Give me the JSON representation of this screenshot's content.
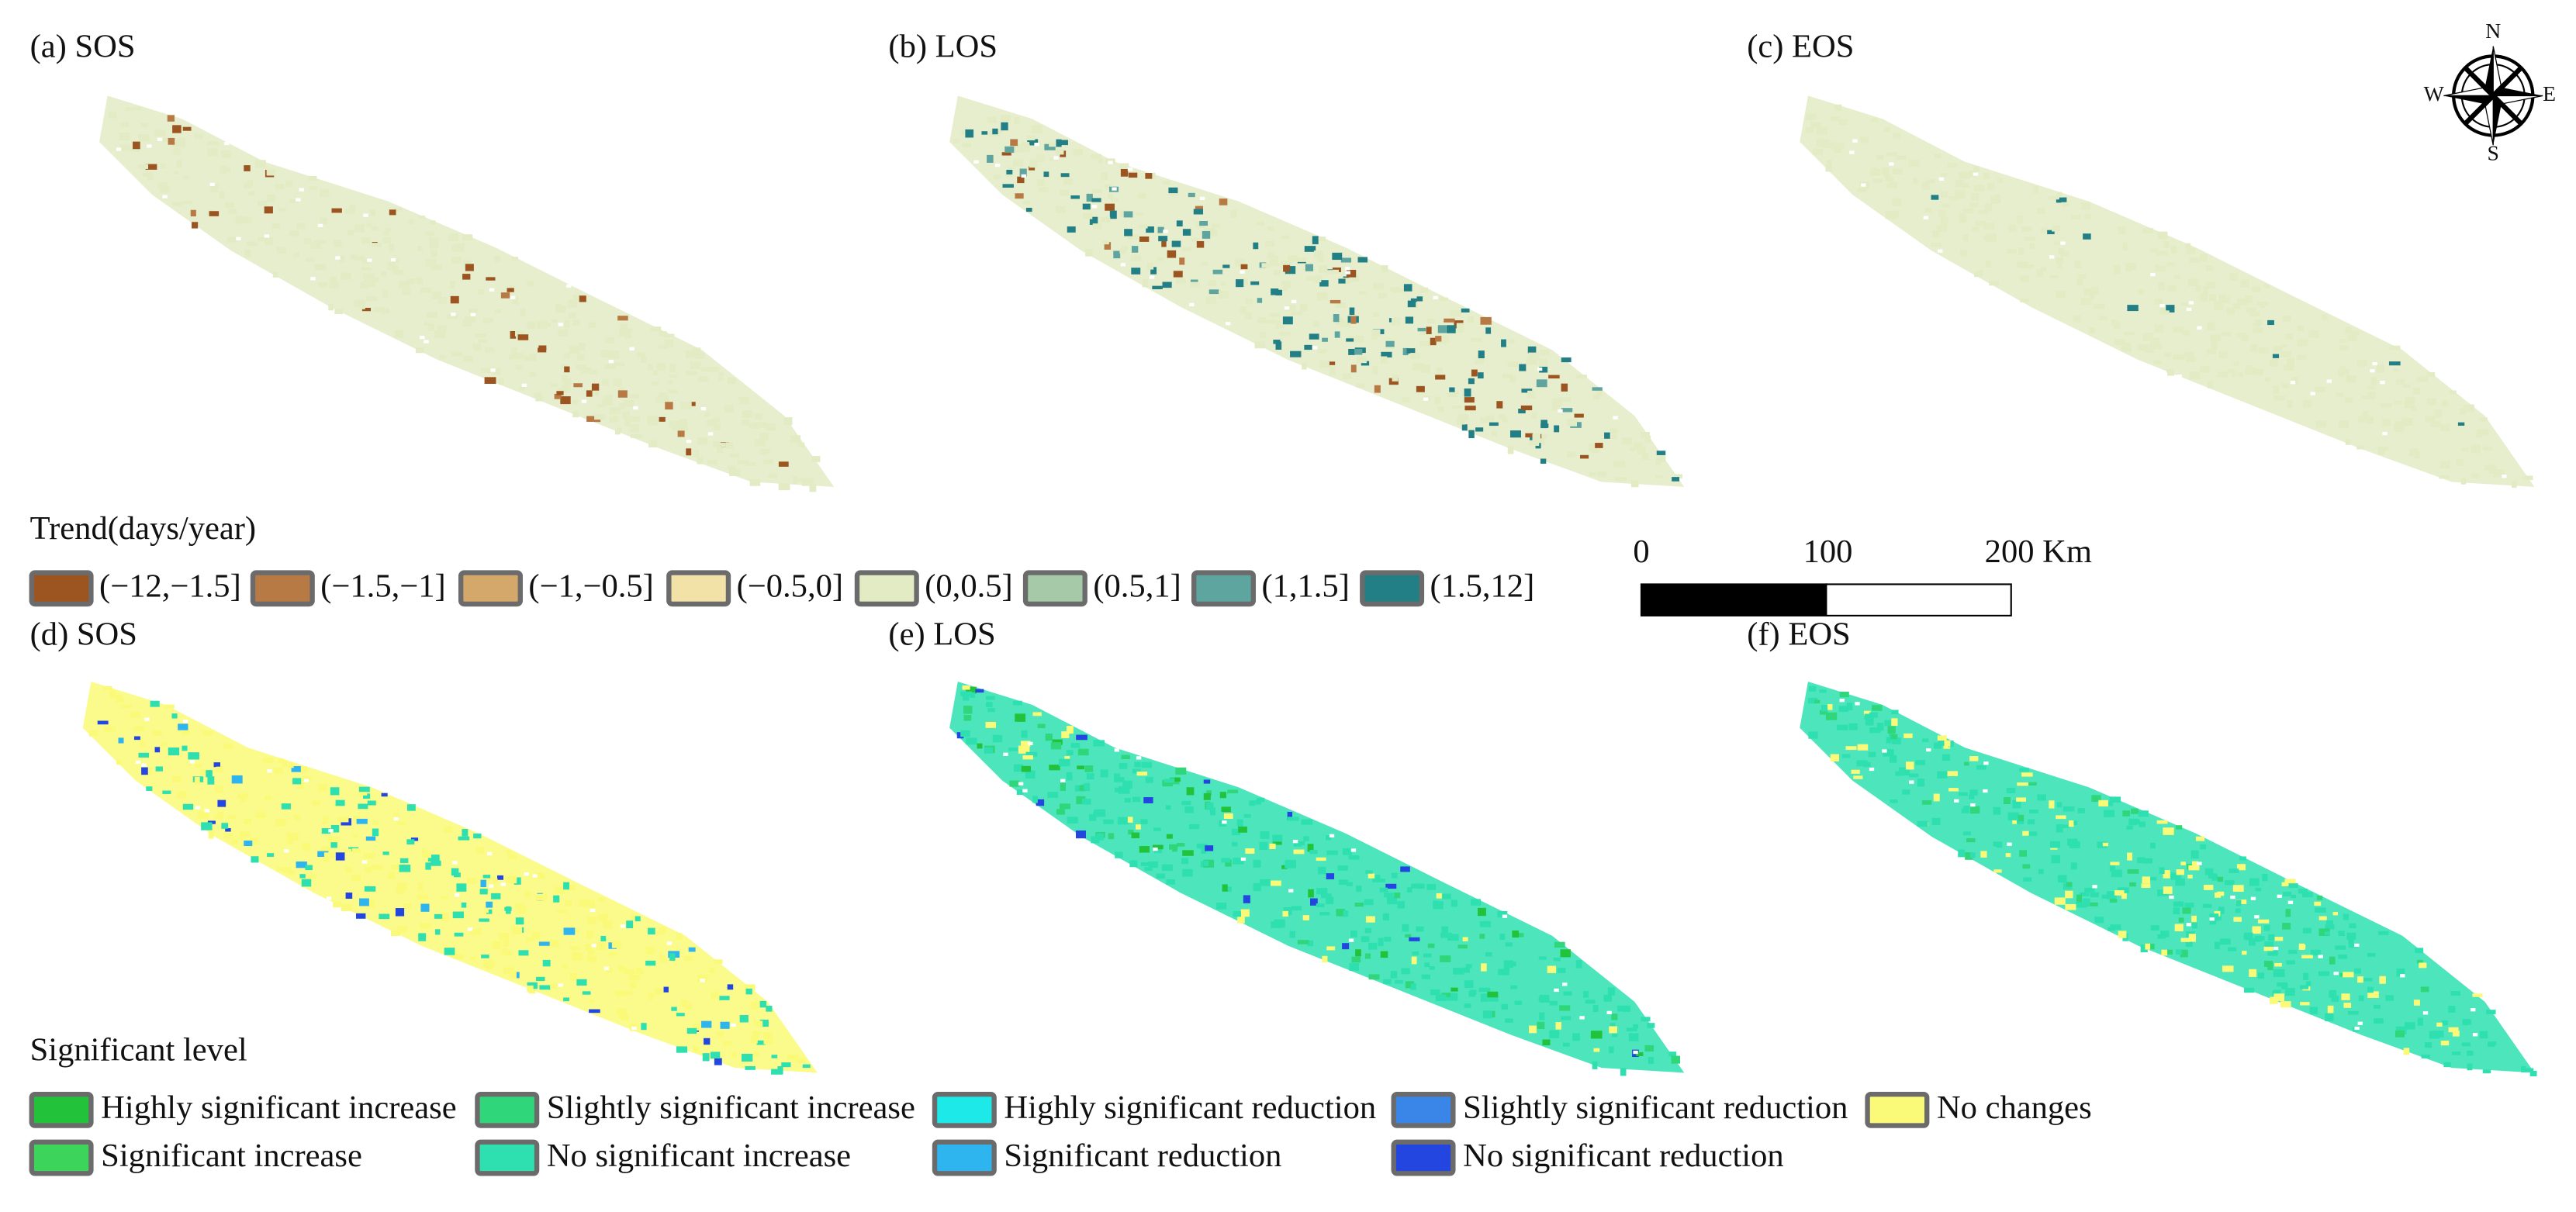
{
  "panels": [
    {
      "label": "(a) SOS"
    },
    {
      "label": "(b) LOS"
    },
    {
      "label": "(c) EOS"
    },
    {
      "label": "(d) SOS"
    },
    {
      "label": "(e) LOS"
    },
    {
      "label": "(f) EOS"
    }
  ],
  "trend_legend": {
    "title": "Trend(days/year)",
    "items": [
      {
        "label": "(−12,−1.5]",
        "color": "#9c5520"
      },
      {
        "label": "(−1.5,−1]",
        "color": "#b87a45"
      },
      {
        "label": "(−1,−0.5]",
        "color": "#d4a86a"
      },
      {
        "label": "(−0.5,0]",
        "color": "#f2e2a8"
      },
      {
        "label": "(0,0.5]",
        "color": "#e2ebc4"
      },
      {
        "label": "(0.5,1]",
        "color": "#a6c9a8"
      },
      {
        "label": "(1,1.5]",
        "color": "#5ea49f"
      },
      {
        "label": "(1.5,12]",
        "color": "#237f86"
      }
    ]
  },
  "scale_bar": {
    "labels": [
      "0",
      "100",
      "200 Km"
    ]
  },
  "compass": {
    "n": "N",
    "s": "S",
    "e": "E",
    "w": "W"
  },
  "significance_legend": {
    "title": "Significant level",
    "items": [
      {
        "label": "Highly significant increase",
        "color": "#22c33a"
      },
      {
        "label": "Slightly significant increase",
        "color": "#2fd67a"
      },
      {
        "label": "Highly significant reduction",
        "color": "#1de9e9"
      },
      {
        "label": "Slightly significant reduction",
        "color": "#3a86e8"
      },
      {
        "label": "No changes",
        "color": "#fafa78"
      },
      {
        "label": "Significant increase",
        "color": "#3cd45a"
      },
      {
        "label": "No significant increase",
        "color": "#2ee0b0"
      },
      {
        "label": "Significant reduction",
        "color": "#2eb4ee"
      },
      {
        "label": "No significant reduction",
        "color": "#2446e0"
      }
    ]
  }
}
